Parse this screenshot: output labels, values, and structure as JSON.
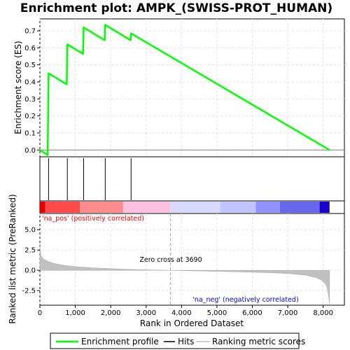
{
  "chart_data": {
    "type": "line",
    "title": "Enrichment plot: AMPK_(SWISS-PROT_HUMAN)",
    "top_panel": {
      "ylabel": "Enrichment score (ES)",
      "ylim": [
        -0.04,
        0.77
      ],
      "yticks": [
        "0.0",
        "0.1",
        "0.2",
        "0.3",
        "0.4",
        "0.5",
        "0.6",
        "0.7"
      ],
      "ytick_values": [
        0.0,
        0.1,
        0.2,
        0.3,
        0.4,
        0.5,
        0.6,
        0.7
      ],
      "series": [
        {
          "name": "Enrichment profile",
          "color": "#00ff00",
          "x": [
            0,
            220,
            245,
            760,
            775,
            1220,
            1235,
            1830,
            1845,
            2560,
            2575,
            8180
          ],
          "y": [
            0.0,
            -0.03,
            0.45,
            0.385,
            0.62,
            0.565,
            0.72,
            0.645,
            0.735,
            0.645,
            0.685,
            0.0
          ]
        }
      ],
      "hits": [
        245,
        775,
        1235,
        1845,
        2575
      ]
    },
    "bottom_panel": {
      "ylabel": "Ranked list metric (PreRanked)",
      "ylim": [
        -4.3,
        7.0
      ],
      "yticks": [
        "-2.5",
        "0.0",
        "2.5",
        "5.0"
      ],
      "ytick_values": [
        -2.5,
        0.0,
        2.5,
        5.0
      ],
      "xlabel": "Rank in Ordered Dataset",
      "xlim": [
        0,
        8600
      ],
      "xticks": [
        "0",
        "1,000",
        "2,000",
        "3,000",
        "4,000",
        "5,000",
        "6,000",
        "7,000",
        "8,000"
      ],
      "xtick_values": [
        0,
        1000,
        2000,
        3000,
        4000,
        5000,
        6000,
        7000,
        8000
      ],
      "metric": {
        "x": [
          0,
          30,
          100,
          200,
          400,
          700,
          1000,
          1500,
          2000,
          2500,
          3000,
          3690,
          4500,
          5500,
          6500,
          7000,
          7500,
          7800,
          7950,
          8050,
          8100,
          8150,
          8180
        ],
        "y": [
          3.0,
          1.8,
          1.4,
          1.15,
          0.85,
          0.6,
          0.45,
          0.3,
          0.2,
          0.12,
          0.06,
          0.0,
          -0.08,
          -0.18,
          -0.3,
          -0.4,
          -0.6,
          -0.9,
          -1.2,
          -1.6,
          -2.0,
          -3.0,
          -4.1
        ]
      },
      "zero_cross": 3690,
      "zero_cross_label": "Zero cross at 3690",
      "pos_label": "'na_pos' (positively correlated)",
      "neg_label": "'na_neg' (negatively correlated)",
      "pos_color": "#ff0000",
      "neg_color": "#0000ff",
      "color_bar": [
        {
          "from": 0,
          "to": 150,
          "color": "#e60000"
        },
        {
          "from": 150,
          "to": 1130,
          "color": "#ff4a4a"
        },
        {
          "from": 1130,
          "to": 2350,
          "color": "#ff8c8c"
        },
        {
          "from": 2350,
          "to": 3690,
          "color": "#ffbfe0"
        },
        {
          "from": 3690,
          "to": 5100,
          "color": "#d8d8ff"
        },
        {
          "from": 5100,
          "to": 6100,
          "color": "#c2c2ff"
        },
        {
          "from": 6100,
          "to": 6780,
          "color": "#9090ff"
        },
        {
          "from": 6780,
          "to": 7900,
          "color": "#6666ee"
        },
        {
          "from": 7900,
          "to": 8180,
          "color": "#1a00cc"
        }
      ]
    },
    "legend": [
      {
        "label": "Enrichment profile",
        "color": "#00ff00"
      },
      {
        "label": "Hits",
        "color": "#000000"
      },
      {
        "label": "Ranking metric scores",
        "color": "#c0c0c0"
      }
    ]
  }
}
